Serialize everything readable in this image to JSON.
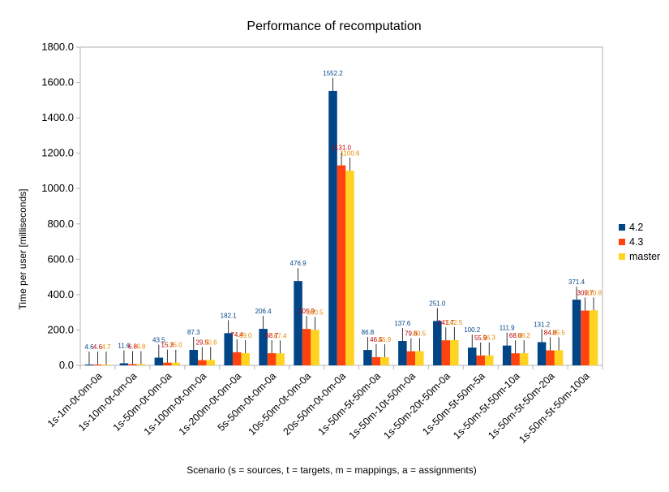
{
  "chart_data": {
    "type": "bar",
    "title": "Performance of recomputation",
    "xlabel": "Scenario (s = sources, t = targets, m = mappings, a = assignments)",
    "ylabel": "Time per user [milliseconds]",
    "ylim": [
      0,
      1800
    ],
    "yticks": [
      "0.0",
      "200.0",
      "400.0",
      "600.0",
      "800.0",
      "1000.0",
      "1200.0",
      "1400.0",
      "1600.0",
      "1800.0"
    ],
    "ytick_values": [
      0,
      200,
      400,
      600,
      800,
      1000,
      1200,
      1400,
      1600,
      1800
    ],
    "grid": false,
    "legend_position": "right",
    "categories": [
      "1s-1m-0t-0m-0a",
      "1s-10m-0t-0m-0a",
      "1s-50m-0t-0m-0a",
      "1s-100m-0t-0m-0a",
      "1s-200m-0t-0m-0a",
      "5s-50m-0t-0m-0a",
      "10s-50m-0t-0m-0a",
      "20s-50m-0t-0m-0a",
      "1s-50m-5t-50m-0a",
      "1s-50m-10t-50m-0a",
      "1s-50m-20t-50m-0a",
      "1s-50m-5t-50m-5a",
      "1s-50m-5t-50m-10a",
      "1s-50m-5t-50m-20a",
      "1s-50m-5t-50m-100a"
    ],
    "series": [
      {
        "name": "4.2",
        "color": "#004586",
        "label_color": "#004586",
        "values": [
          4.6,
          11.6,
          43.5,
          87.3,
          182.1,
          206.4,
          476.9,
          1552.2,
          86.8,
          137.6,
          251.0,
          100.2,
          111.9,
          131.2,
          371.4
        ],
        "labels": [
          "4.6",
          "11.6",
          "43.5",
          "87.3",
          "182.1",
          "206.4",
          "476.9",
          "1552.2",
          "86.8",
          "137.6",
          "251.0",
          "100.2",
          "111.9",
          "131.2",
          "371.4"
        ]
      },
      {
        "name": "4.3",
        "color": "#ff420e",
        "label_color": "#c00000",
        "values": [
          4.6,
          6.8,
          15.3,
          29.5,
          74.4,
          68.7,
          205.9,
          1131.0,
          46.5,
          79.6,
          141.7,
          55.9,
          68.0,
          84.8,
          309.7
        ],
        "labels": [
          "4.6",
          "6.8",
          "15.3",
          "29.5",
          "74.4",
          "68.7",
          "205.9",
          "1131.0",
          "46.5",
          "79.6",
          "141.7",
          "55.9",
          "68.0",
          "84.8",
          "309.7"
        ]
      },
      {
        "name": "master",
        "color": "#ffd320",
        "label_color": "#e68a00",
        "values": [
          4.7,
          6.8,
          15.0,
          30.6,
          69.0,
          67.4,
          200.5,
          1100.6,
          45.9,
          80.5,
          142.5,
          56.3,
          68.2,
          85.5,
          310.8
        ],
        "labels": [
          "4.7",
          "6.8",
          "15.0",
          "30.6",
          "69.0",
          "67.4",
          "200.5",
          "1100.6",
          "45.9",
          "80.5",
          "142.5",
          "56.3",
          "68.2",
          "85.5",
          "310.8"
        ]
      }
    ]
  }
}
